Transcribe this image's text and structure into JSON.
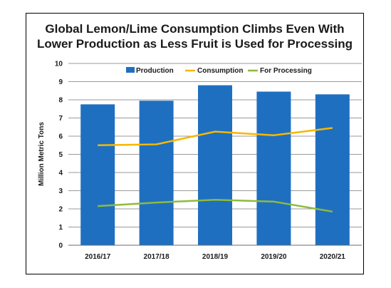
{
  "chart_data": {
    "type": "bar",
    "title_lines": [
      "Global Lemon/Lime Consumption Climbs Even With",
      "Lower Production as Less Fruit is Used for Processing"
    ],
    "xlabel": "",
    "ylabel": "Million Metric Tons",
    "ylim": [
      0,
      10
    ],
    "yticks": [
      "0",
      "1",
      "2",
      "3",
      "4",
      "5",
      "6",
      "7",
      "8",
      "9",
      "10"
    ],
    "grid": true,
    "legend_position": "top",
    "categories": [
      "2016/17",
      "2017/18",
      "2018/19",
      "2019/20",
      "2020/21"
    ],
    "series": [
      {
        "name": "Production",
        "kind": "bar",
        "color": "#1f6fc1",
        "values": [
          7.75,
          7.95,
          8.8,
          8.45,
          8.3
        ]
      },
      {
        "name": "Consumption",
        "kind": "line",
        "color": "#f5b800",
        "values": [
          5.5,
          5.55,
          6.25,
          6.05,
          6.45
        ]
      },
      {
        "name": "For Processing",
        "kind": "line",
        "color": "#8dbb3c",
        "values": [
          2.15,
          2.35,
          2.5,
          2.4,
          1.85
        ]
      }
    ]
  }
}
